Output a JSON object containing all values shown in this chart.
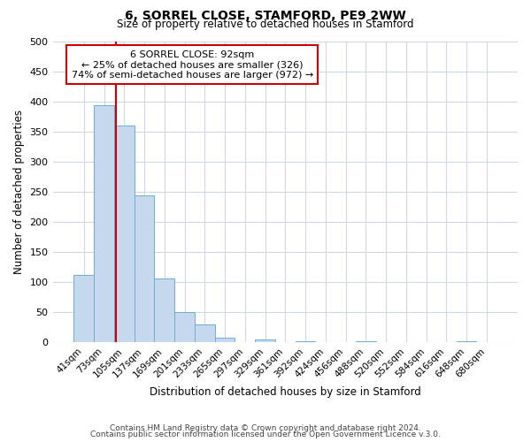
{
  "title": "6, SORREL CLOSE, STAMFORD, PE9 2WW",
  "subtitle": "Size of property relative to detached houses in Stamford",
  "xlabel": "Distribution of detached houses by size in Stamford",
  "ylabel": "Number of detached properties",
  "bar_color": "#c5d8ed",
  "bar_edge_color": "#6aaed6",
  "bin_labels": [
    "41sqm",
    "73sqm",
    "105sqm",
    "137sqm",
    "169sqm",
    "201sqm",
    "233sqm",
    "265sqm",
    "297sqm",
    "329sqm",
    "361sqm",
    "392sqm",
    "424sqm",
    "456sqm",
    "488sqm",
    "520sqm",
    "552sqm",
    "584sqm",
    "616sqm",
    "648sqm",
    "680sqm"
  ],
  "bar_values": [
    112,
    394,
    360,
    243,
    105,
    50,
    30,
    8,
    0,
    5,
    0,
    2,
    0,
    0,
    1,
    0,
    0,
    0,
    0,
    1,
    0
  ],
  "ylim": [
    0,
    500
  ],
  "yticks": [
    0,
    50,
    100,
    150,
    200,
    250,
    300,
    350,
    400,
    450,
    500
  ],
  "property_line_bin_index": 1.58,
  "annotation_title": "6 SORREL CLOSE: 92sqm",
  "annotation_line1": "← 25% of detached houses are smaller (326)",
  "annotation_line2": "74% of semi-detached houses are larger (972) →",
  "red_line_color": "#cc0000",
  "annotation_box_color": "#ffffff",
  "annotation_box_edge": "#cc0000",
  "footer1": "Contains HM Land Registry data © Crown copyright and database right 2024.",
  "footer2": "Contains public sector information licensed under the Open Government Licence v.3.0.",
  "background_color": "#ffffff",
  "grid_color": "#d0d8e8"
}
